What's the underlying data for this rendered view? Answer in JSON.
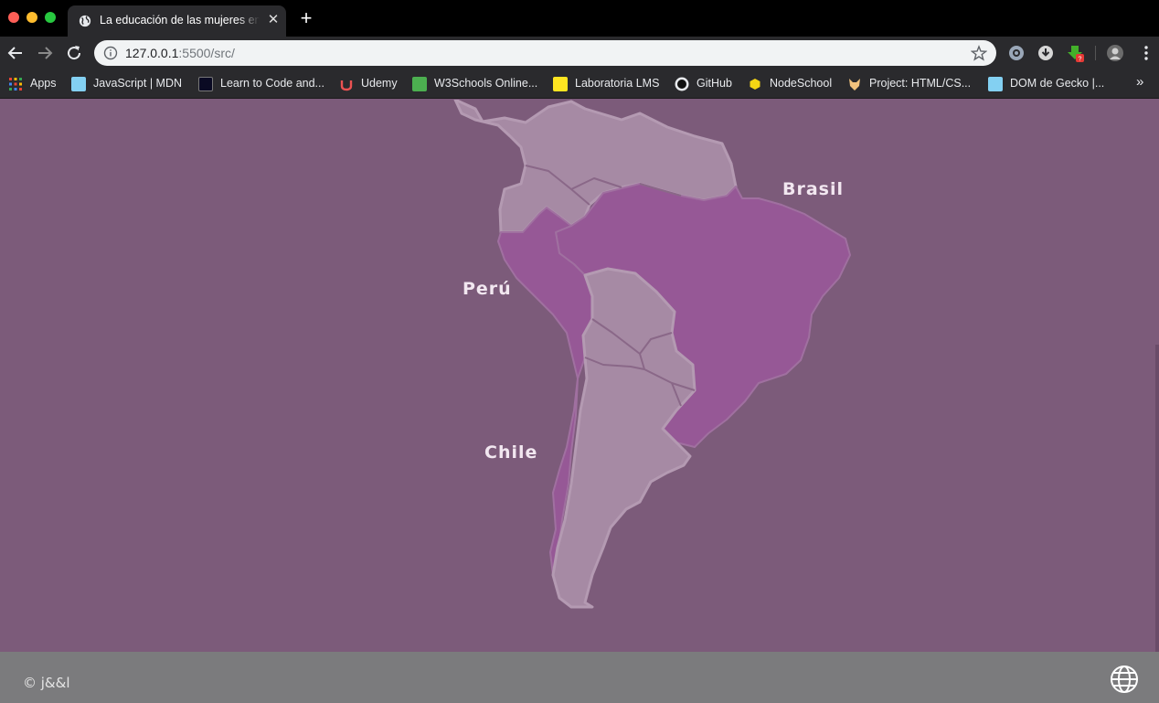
{
  "browser": {
    "tab": {
      "title": "La educación de las mujeres en",
      "close": "✕"
    },
    "new_tab": "+",
    "url_host": "127.0.0.1",
    "url_path": ":5500/src/",
    "bookmarks": [
      {
        "label": "Apps",
        "icon": "apps-grid-icon",
        "color": "#e9543a"
      },
      {
        "label": "JavaScript | MDN",
        "icon": "mdn-icon",
        "color": "#83d0f2"
      },
      {
        "label": "Learn to Code and...",
        "icon": "freecodecamp-icon",
        "color": "#0a0a23"
      },
      {
        "label": "Udemy",
        "icon": "udemy-icon",
        "color": "#ec5252"
      },
      {
        "label": "W3Schools Online...",
        "icon": "w3schools-icon",
        "color": "#4caf50"
      },
      {
        "label": "Laboratoria LMS",
        "icon": "laboratoria-icon",
        "color": "#ffe521"
      },
      {
        "label": "GitHub",
        "icon": "github-icon",
        "color": "#111111"
      },
      {
        "label": "NodeSchool",
        "icon": "nodeschool-icon",
        "color": "#f5d614"
      },
      {
        "label": "Project: HTML/CS...",
        "icon": "fox-icon",
        "color": "#f1c27d"
      },
      {
        "label": "DOM de Gecko |...",
        "icon": "mdn-icon",
        "color": "#83d0f2"
      }
    ],
    "more": "»"
  },
  "map": {
    "labels": {
      "brasil": "Brasil",
      "peru": "Perú",
      "chile": "Chile"
    },
    "colors": {
      "background": "#7c5b7a",
      "highlight": "#965896",
      "land": "#a68aa4"
    }
  },
  "footer": {
    "copyright": "© j&&l"
  }
}
